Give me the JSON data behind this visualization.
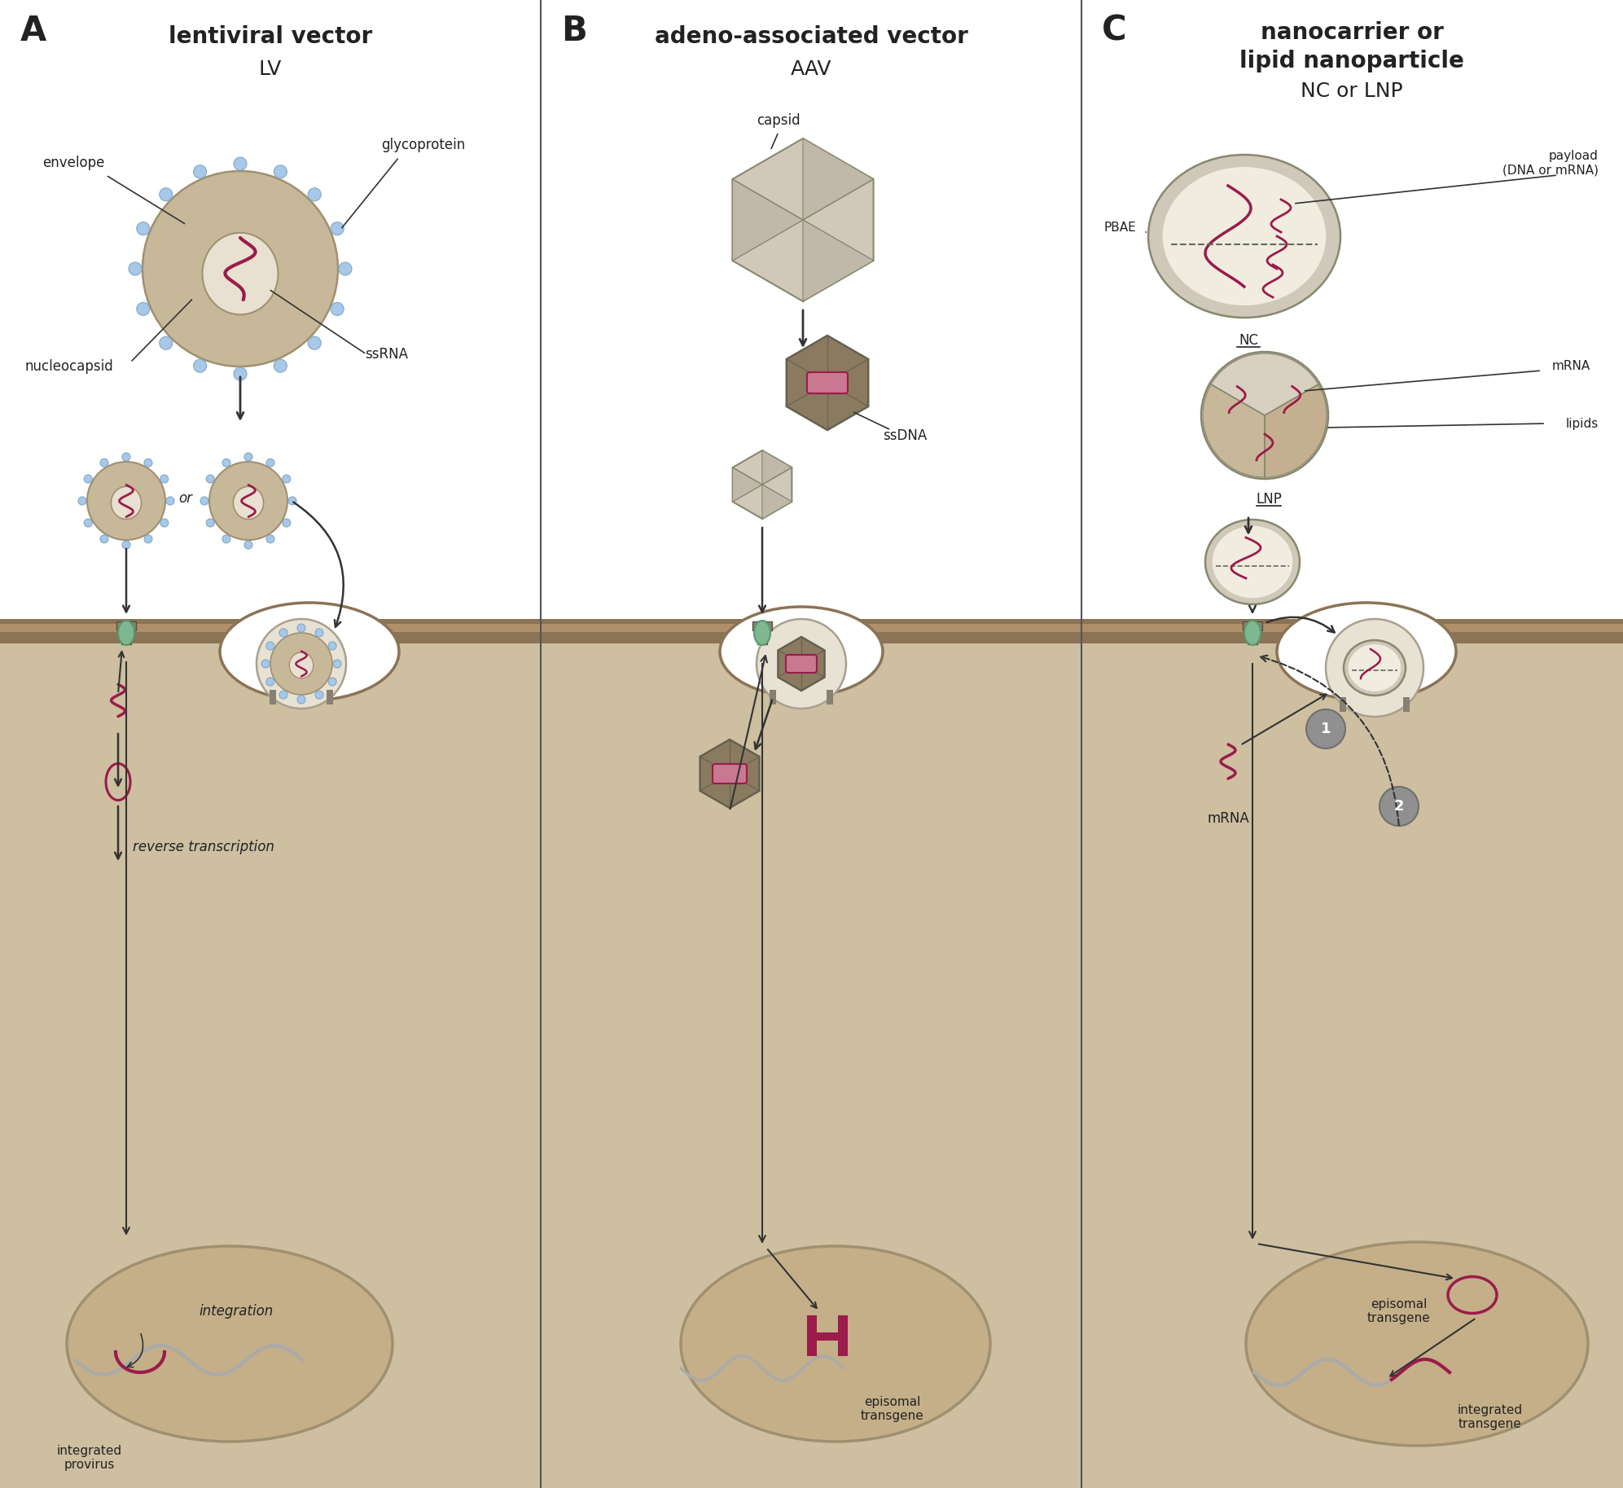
{
  "panel_A_title": "lentiviral vector",
  "panel_A_subtitle": "LV",
  "panel_B_title": "adeno-associated vector",
  "panel_B_subtitle": "AAV",
  "panel_C_title_line1": "nanocarrier or",
  "panel_C_title_line2": "lipid nanoparticle",
  "panel_C_subtitle": "NC or LNP",
  "bg_color": "#ffffff",
  "cyto_color": "#cdbfa0",
  "membrane_dark": "#a08060",
  "membrane_band": "#8b7355",
  "nucleus_color": "#c4af88",
  "nucleus_edge": "#a09070",
  "lv_outer": "#c8b89a",
  "lv_inner": "#e8e0d0",
  "spike_color": "#a8c8e8",
  "spike_edge": "#80a8c8",
  "rna_color": "#9b1b4b",
  "arrow_color": "#333333",
  "label_color": "#222222",
  "green_pore": "#7db890",
  "gray_receptor": "#888070",
  "aav_light": "#d0c8b8",
  "aav_mid": "#c0b8a8",
  "aav_dark": "#8a7a60",
  "aav_darker": "#766850",
  "nc_outer": "#d0c8b8",
  "nc_inner": "#f0ece0",
  "nc_texture": "#e8e2d4",
  "lnp_outer": "#d0c8b8",
  "lnp_div": "#c0b0a0",
  "gray_badge": "#909090",
  "chr_color": "#aaaaaa",
  "white": "#ffffff",
  "panel_div_color": "#555555",
  "endosome_color": "#e8e2d4",
  "endosome_edge": "#aaa090"
}
